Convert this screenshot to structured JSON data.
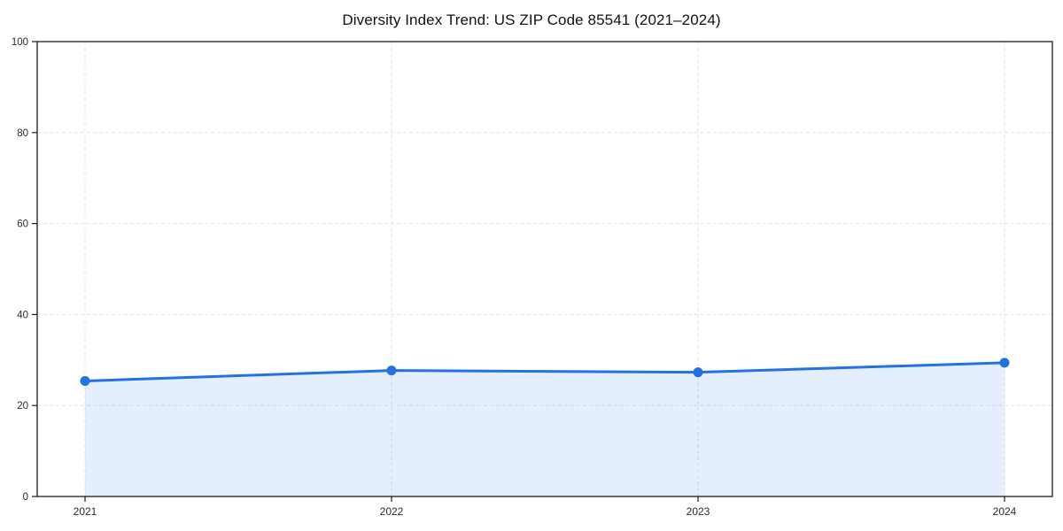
{
  "chart_data": {
    "type": "line",
    "title": "Diversity Index Trend: US ZIP Code 85541 (2021–2024)",
    "categories": [
      "2021",
      "2022",
      "2023",
      "2024"
    ],
    "x": [
      2021,
      2022,
      2023,
      2024
    ],
    "series": [
      {
        "name": "Diversity Index",
        "values": [
          25.4,
          27.7,
          27.3,
          29.4
        ]
      }
    ],
    "xlabel": "",
    "ylabel": "",
    "ylim": [
      0,
      100
    ],
    "yticks": [
      0,
      20,
      40,
      60,
      80,
      100
    ],
    "grid": true,
    "grid_style": "dashed",
    "legend": false,
    "area_fill": true,
    "marker": "circle",
    "colors": {
      "line": "#2272e3",
      "marker": "#2272e3",
      "fill": "rgba(34,114,227,0.12)",
      "grid": "#e4e4e4",
      "axis": "#1a1a1a",
      "tick_label": "#2b2b2b",
      "title": "#111111",
      "background": "#ffffff"
    }
  }
}
